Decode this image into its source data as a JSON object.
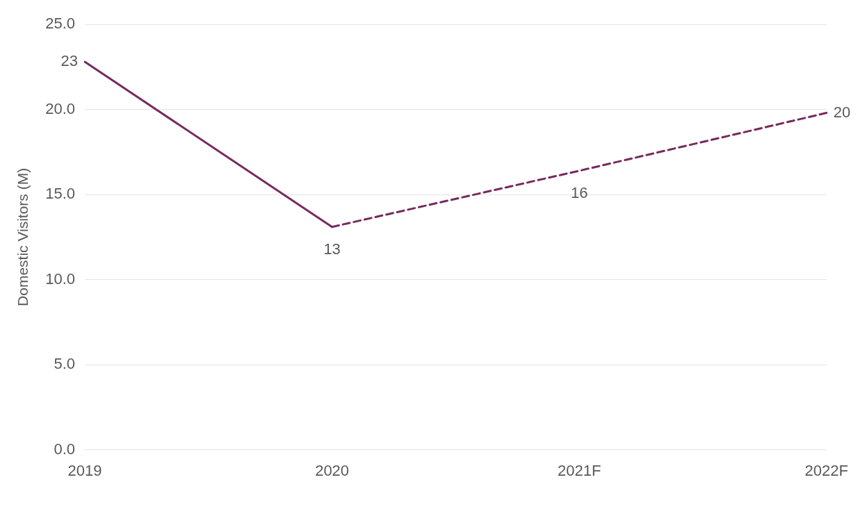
{
  "chart_data": {
    "type": "line",
    "ylabel": "Domestic Visitors (M)",
    "categories": [
      "2019",
      "2020",
      "2021F",
      "2022F"
    ],
    "series": [
      {
        "color": "#772a5e",
        "values": [
          22.8,
          13.1,
          null,
          null
        ],
        "line_style": "solid",
        "value_labels": [
          "23",
          "13",
          null,
          null
        ]
      },
      {
        "color": "#772a5e",
        "values": [
          null,
          13.1,
          16.4,
          19.8
        ],
        "line_style": "dashed",
        "value_labels": [
          null,
          null,
          "16",
          "20"
        ]
      }
    ],
    "ylim": [
      0,
      25
    ],
    "yticks": [
      {
        "value": 0,
        "label": "0.0"
      },
      {
        "value": 5,
        "label": "5.0"
      },
      {
        "value": 10,
        "label": "10.0"
      },
      {
        "value": 15,
        "label": "15.0"
      },
      {
        "value": 20,
        "label": "20.0"
      },
      {
        "value": 25,
        "label": "25.0"
      }
    ],
    "grid": "y",
    "legend": false,
    "marker": "none"
  }
}
